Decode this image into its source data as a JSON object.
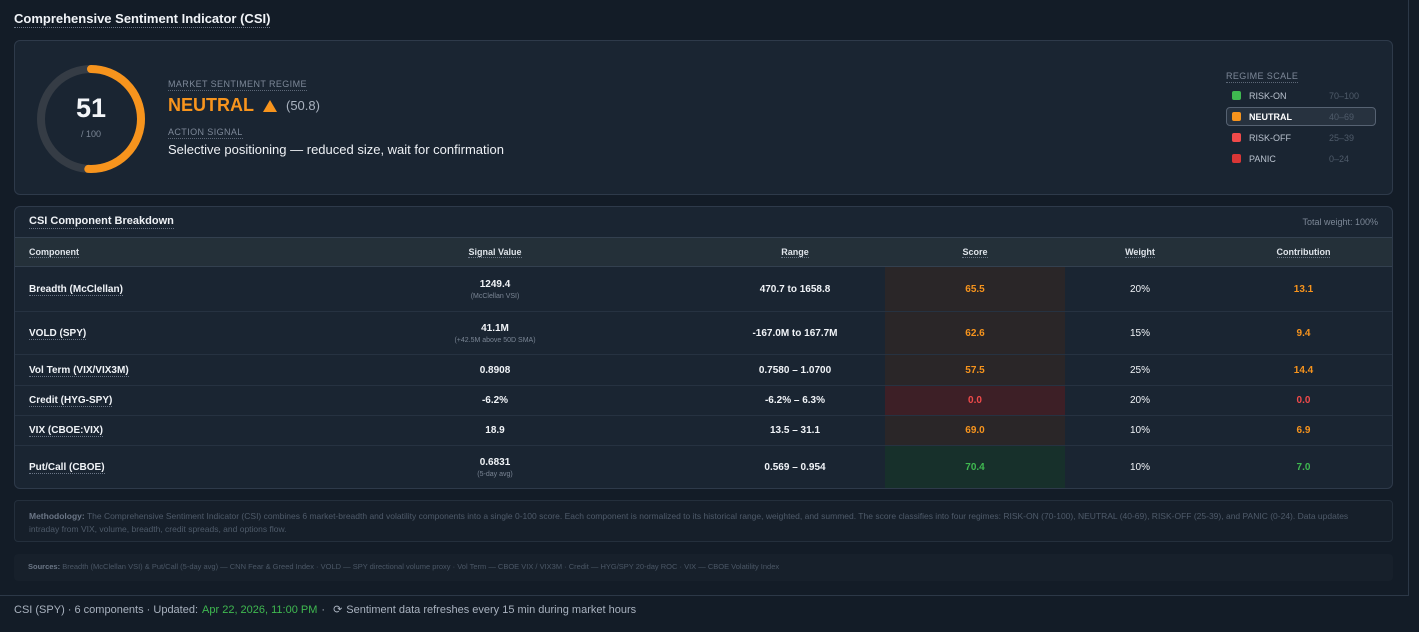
{
  "page": {
    "title": "Comprehensive Sentiment Indicator (CSI)"
  },
  "hero": {
    "score": "51",
    "score_max": "/ 100",
    "score_fraction": 0.508,
    "gauge_color": "#f7941d",
    "regime_label": "MARKET SENTIMENT REGIME",
    "regime": "NEUTRAL",
    "regime_value": "(50.8)",
    "action_label": "ACTION SIGNAL",
    "action": "Selective positioning — reduced size, wait for confirmation"
  },
  "scale": {
    "title": "REGIME SCALE",
    "items": [
      {
        "name": "RISK-ON",
        "range": "70–100",
        "color": "#3fb950",
        "active": false
      },
      {
        "name": "NEUTRAL",
        "range": "40–69",
        "color": "#f7941d",
        "active": true
      },
      {
        "name": "RISK-OFF",
        "range": "25–39",
        "color": "#f04a4a",
        "active": false
      },
      {
        "name": "PANIC",
        "range": "0–24",
        "color": "#d93636",
        "active": false
      }
    ]
  },
  "breakdown": {
    "title": "CSI Component Breakdown",
    "total_weight": "Total weight: 100%",
    "columns": [
      "Component",
      "Signal Value",
      "Range",
      "Score",
      "Weight",
      "Contribution"
    ],
    "rows": [
      {
        "component": "Breadth (McClellan)",
        "signal": "1249.4",
        "signal_sub": "(McClellan VSI)",
        "range": "470.7 to 1658.8",
        "score": "65.5",
        "weight": "20%",
        "contribution": "13.1",
        "tone": "amber"
      },
      {
        "component": "VOLD (SPY)",
        "signal": "41.1M",
        "signal_sub": "(+42.5M above 50D SMA)",
        "range": "-167.0M to 167.7M",
        "score": "62.6",
        "weight": "15%",
        "contribution": "9.4",
        "tone": "amber"
      },
      {
        "component": "Vol Term (VIX/VIX3M)",
        "signal": "0.8908",
        "signal_sub": "",
        "range": "0.7580 – 1.0700",
        "score": "57.5",
        "weight": "25%",
        "contribution": "14.4",
        "tone": "amber"
      },
      {
        "component": "Credit (HYG-SPY)",
        "signal": "-6.2%",
        "signal_sub": "",
        "range": "-6.2% – 6.3%",
        "score": "0.0",
        "weight": "20%",
        "contribution": "0.0",
        "tone": "red"
      },
      {
        "component": "VIX (CBOE:VIX)",
        "signal": "18.9",
        "signal_sub": "",
        "range": "13.5 – 31.1",
        "score": "69.0",
        "weight": "10%",
        "contribution": "6.9",
        "tone": "amber"
      },
      {
        "component": "Put/Call (CBOE)",
        "signal": "0.6831",
        "signal_sub": "(5-day avg)",
        "range": "0.569 – 0.954",
        "score": "70.4",
        "weight": "10%",
        "contribution": "7.0",
        "tone": "green"
      }
    ]
  },
  "methodology": {
    "label": "Methodology:",
    "text": "The Comprehensive Sentiment Indicator (CSI) combines 6 market-breadth and volatility components into a single 0-100 score. Each component is normalized to its historical range, weighted, and summed. The score classifies into four regimes: RISK-ON (70-100), NEUTRAL (40-69), RISK-OFF (25-39), and PANIC (0-24). Data updates intraday from VIX, volume, breadth, credit spreads, and options flow."
  },
  "sources": {
    "label": "Sources:",
    "text": "Breadth (McClellan VSI) & Put/Call (5-day avg) — CNN Fear & Greed Index · VOLD — SPY directional volume proxy · Vol Term — CBOE VIX / VIX3M · Credit — HYG/SPY 20-day ROC · VIX — CBOE Volatility Index"
  },
  "footer": {
    "summary": "CSI (SPY) · 6 components · Updated:",
    "timestamp": "Apr 22, 2026, 11:00 PM",
    "separator": "·",
    "refresh_note": "Sentiment data refreshes every 15 min during market hours"
  },
  "colors": {
    "amber": "#f7941d",
    "red": "#f04a4a",
    "green": "#3fb950",
    "amber_bg": "#2a2628",
    "red_bg": "#3d1f26",
    "green_bg": "#17302b"
  }
}
